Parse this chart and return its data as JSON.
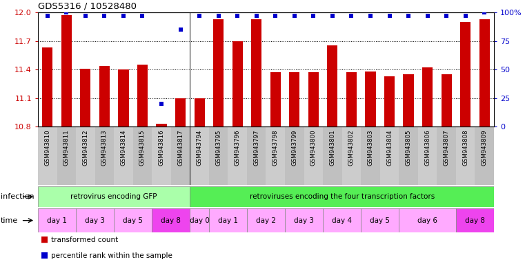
{
  "title": "GDS5316 / 10528480",
  "samples": [
    "GSM943810",
    "GSM943811",
    "GSM943812",
    "GSM943813",
    "GSM943814",
    "GSM943815",
    "GSM943816",
    "GSM943817",
    "GSM943794",
    "GSM943795",
    "GSM943796",
    "GSM943797",
    "GSM943798",
    "GSM943799",
    "GSM943800",
    "GSM943801",
    "GSM943802",
    "GSM943803",
    "GSM943804",
    "GSM943805",
    "GSM943806",
    "GSM943807",
    "GSM943808",
    "GSM943809"
  ],
  "transformed_counts": [
    11.63,
    11.97,
    11.41,
    11.44,
    11.4,
    11.45,
    10.83,
    11.1,
    11.1,
    11.93,
    11.7,
    11.93,
    11.37,
    11.37,
    11.37,
    11.65,
    11.37,
    11.38,
    11.33,
    11.35,
    11.42,
    11.35,
    11.9,
    11.93
  ],
  "percentile_ranks": [
    97,
    100,
    97,
    97,
    97,
    97,
    20,
    85,
    97,
    97,
    97,
    97,
    97,
    97,
    97,
    97,
    97,
    97,
    97,
    97,
    97,
    97,
    97,
    100
  ],
  "ylim_left": [
    10.8,
    12.0
  ],
  "ylim_right": [
    0,
    100
  ],
  "yticks_left": [
    10.8,
    11.1,
    11.4,
    11.7,
    12.0
  ],
  "yticks_right": [
    0,
    25,
    50,
    75,
    100
  ],
  "bar_color": "#cc0000",
  "dot_color": "#0000cc",
  "infection_groups": [
    {
      "label": "retrovirus encoding GFP",
      "start": 0,
      "end": 8,
      "color": "#aaffaa"
    },
    {
      "label": "retroviruses encoding the four transcription factors",
      "start": 8,
      "end": 24,
      "color": "#55ee55"
    }
  ],
  "time_groups": [
    {
      "label": "day 1",
      "start": 0,
      "end": 2,
      "color": "#ffaaff"
    },
    {
      "label": "day 3",
      "start": 2,
      "end": 4,
      "color": "#ffaaff"
    },
    {
      "label": "day 5",
      "start": 4,
      "end": 6,
      "color": "#ffaaff"
    },
    {
      "label": "day 8",
      "start": 6,
      "end": 8,
      "color": "#ee44ee"
    },
    {
      "label": "day 0",
      "start": 8,
      "end": 9,
      "color": "#ffaaff"
    },
    {
      "label": "day 1",
      "start": 9,
      "end": 11,
      "color": "#ffaaff"
    },
    {
      "label": "day 2",
      "start": 11,
      "end": 13,
      "color": "#ffaaff"
    },
    {
      "label": "day 3",
      "start": 13,
      "end": 15,
      "color": "#ffaaff"
    },
    {
      "label": "day 4",
      "start": 15,
      "end": 17,
      "color": "#ffaaff"
    },
    {
      "label": "day 5",
      "start": 17,
      "end": 19,
      "color": "#ffaaff"
    },
    {
      "label": "day 6",
      "start": 19,
      "end": 22,
      "color": "#ffaaff"
    },
    {
      "label": "day 8",
      "start": 22,
      "end": 24,
      "color": "#ee44ee"
    }
  ],
  "legend_items": [
    {
      "label": "transformed count",
      "color": "#cc0000"
    },
    {
      "label": "percentile rank within the sample",
      "color": "#0000cc"
    }
  ],
  "grid_yticks": [
    11.1,
    11.4,
    11.7
  ],
  "group_separator": 7.5
}
